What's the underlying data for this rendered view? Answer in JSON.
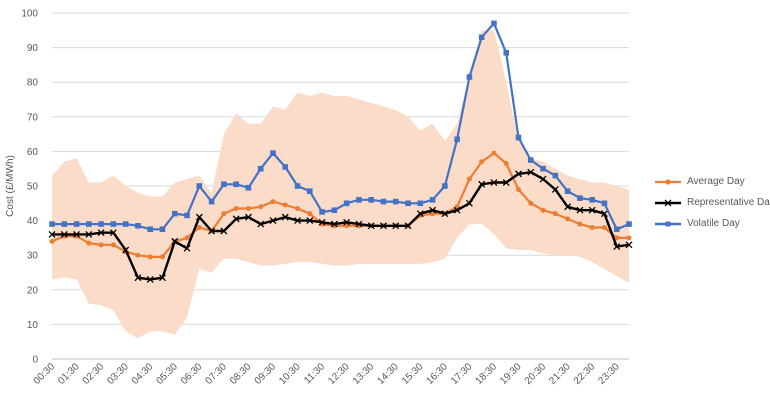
{
  "chart_data": {
    "type": "line",
    "title": "",
    "xlabel": "",
    "ylabel": "Cost (£/MWh)",
    "ylim": [
      0,
      100
    ],
    "yticks": [
      0,
      10,
      20,
      30,
      40,
      50,
      60,
      70,
      80,
      90,
      100
    ],
    "grid": "horizontal",
    "legend_position": "right",
    "x": [
      "00:30",
      "01:00",
      "01:30",
      "02:00",
      "02:30",
      "03:00",
      "03:30",
      "04:00",
      "04:30",
      "05:00",
      "05:30",
      "06:00",
      "06:30",
      "07:00",
      "07:30",
      "08:00",
      "08:30",
      "09:00",
      "09:30",
      "10:00",
      "10:30",
      "11:00",
      "11:30",
      "12:00",
      "12:30",
      "13:00",
      "13:30",
      "14:00",
      "14:30",
      "15:00",
      "15:30",
      "16:00",
      "16:30",
      "17:00",
      "17:30",
      "18:00",
      "18:30",
      "19:00",
      "19:30",
      "20:00",
      "20:30",
      "21:00",
      "21:30",
      "22:00",
      "22:30",
      "23:00",
      "23:30",
      "00:00"
    ],
    "xtick_labels": [
      "00:30",
      "01:30",
      "02:30",
      "03:30",
      "04:30",
      "05:30",
      "06:30",
      "07:30",
      "08:30",
      "09:30",
      "10:30",
      "11:30",
      "12:30",
      "13:30",
      "14:30",
      "15:30",
      "16:30",
      "17:30",
      "18:30",
      "19:30",
      "20:30",
      "21:30",
      "22:30",
      "23:30"
    ],
    "band": {
      "upper": [
        53,
        57,
        58,
        51,
        51,
        53,
        50,
        48,
        47,
        47,
        51,
        52,
        53,
        48,
        65,
        71,
        68,
        68,
        73,
        72,
        77,
        76,
        77,
        76,
        76,
        75,
        74,
        73,
        72,
        70,
        66,
        68,
        63,
        68,
        82,
        95,
        95,
        80,
        63,
        58,
        57,
        55,
        53,
        52,
        51,
        51,
        50,
        49
      ],
      "lower": [
        23,
        23.5,
        23,
        16,
        15.5,
        14,
        8,
        6,
        8,
        8,
        7,
        12,
        26,
        25,
        29,
        29,
        28,
        27,
        27,
        27.5,
        28,
        28,
        27.5,
        27,
        27,
        27.5,
        27.5,
        27.5,
        27.5,
        27.5,
        27.5,
        28,
        29,
        35,
        39,
        39,
        36,
        32,
        31.5,
        31.5,
        30.5,
        30,
        30,
        29.5,
        28,
        26,
        24,
        22
      ],
      "color": "#fbdcc9"
    },
    "series": [
      {
        "name": "Average Day",
        "color": "#ed7d31",
        "marker": "circle",
        "values": [
          34,
          35.5,
          35.5,
          33.5,
          33,
          33,
          31,
          30,
          29.5,
          29.5,
          34,
          35,
          38,
          37,
          42,
          43.5,
          43.5,
          44,
          45.5,
          44.5,
          43.5,
          42,
          39,
          38.5,
          38.5,
          38.5,
          38.5,
          38.5,
          38.5,
          38.5,
          41.5,
          42,
          42,
          44,
          52,
          57,
          59.5,
          56.5,
          49,
          45,
          43,
          42,
          40.5,
          39,
          38,
          38,
          35,
          35
        ]
      },
      {
        "name": "Representative Day",
        "color": "#000000",
        "marker": "x",
        "values": [
          36,
          36,
          36,
          36,
          36.5,
          36.5,
          31.5,
          23.5,
          23,
          23.5,
          34,
          32,
          41,
          37,
          37,
          40.5,
          41,
          39,
          40,
          41,
          40,
          40,
          39.5,
          39,
          39.5,
          39,
          38.5,
          38.5,
          38.5,
          38.5,
          42,
          43,
          42,
          43,
          45,
          50.5,
          51,
          51,
          53.5,
          54,
          52,
          49,
          44,
          43,
          43,
          42,
          32.5,
          33
        ]
      },
      {
        "name": "Volatile Day",
        "color": "#4472c4",
        "marker": "square",
        "values": [
          39,
          39,
          39,
          39,
          39,
          39,
          39,
          38.5,
          37.5,
          37.5,
          42,
          41.5,
          50,
          45.5,
          50.5,
          50.5,
          49.5,
          55,
          59.5,
          55.5,
          50,
          48.5,
          42.5,
          43,
          45,
          46,
          46,
          45.5,
          45.5,
          45,
          45,
          46,
          50,
          63.5,
          81.5,
          93,
          97,
          88.5,
          64,
          57.5,
          55,
          53,
          48.5,
          46.5,
          46,
          45,
          37.5,
          39
        ]
      }
    ]
  }
}
